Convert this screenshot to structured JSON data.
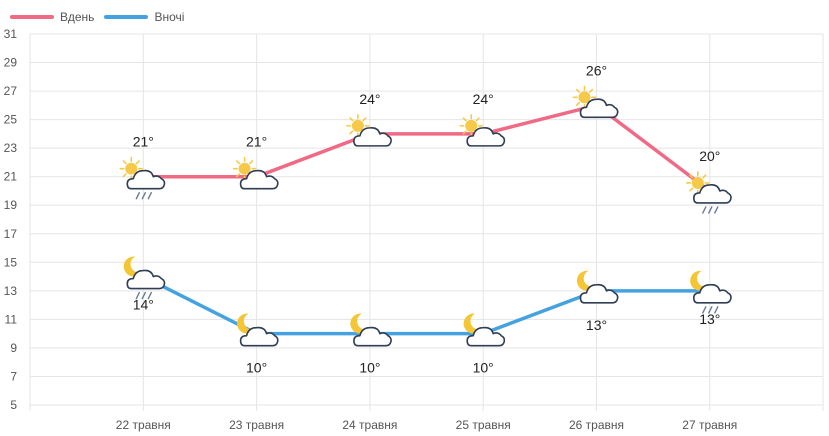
{
  "colors": {
    "day": "#ef6b85",
    "night": "#45a2e0",
    "grid": "#e5e5e5",
    "axis_text": "#555555",
    "label_text": "#222222",
    "sun": "#f7c948",
    "moon": "#f4c636",
    "cloud_stroke": "#2f3d55",
    "rain": "#6a7b95"
  },
  "chart_data": {
    "type": "line",
    "categories": [
      "22 травня",
      "23 травня",
      "24 травня",
      "25 травня",
      "26 травня",
      "27 травня"
    ],
    "ylim": [
      5,
      31
    ],
    "yticks": [
      5,
      7,
      9,
      11,
      13,
      15,
      17,
      19,
      21,
      23,
      25,
      27,
      29,
      31
    ],
    "grid": true,
    "legend_position": "top-left",
    "series": [
      {
        "name": "Вдень",
        "key": "day",
        "values": [
          21,
          21,
          24,
          24,
          26,
          20
        ],
        "labels": [
          "21°",
          "21°",
          "24°",
          "24°",
          "26°",
          "20°"
        ],
        "icons": [
          "sun-cloud-rain-icon",
          "sun-cloud-icon",
          "sun-cloud-icon",
          "sun-cloud-icon",
          "sun-cloud-icon",
          "sun-cloud-rain-icon"
        ]
      },
      {
        "name": "Вночі",
        "key": "night",
        "values": [
          14,
          10,
          10,
          10,
          13,
          13
        ],
        "labels": [
          "14°",
          "10°",
          "10°",
          "10°",
          "13°",
          "13°"
        ],
        "icons": [
          "moon-cloud-rain-icon",
          "moon-cloud-icon",
          "moon-cloud-icon",
          "moon-cloud-icon",
          "moon-cloud-icon",
          "moon-cloud-rain-icon"
        ]
      }
    ]
  }
}
